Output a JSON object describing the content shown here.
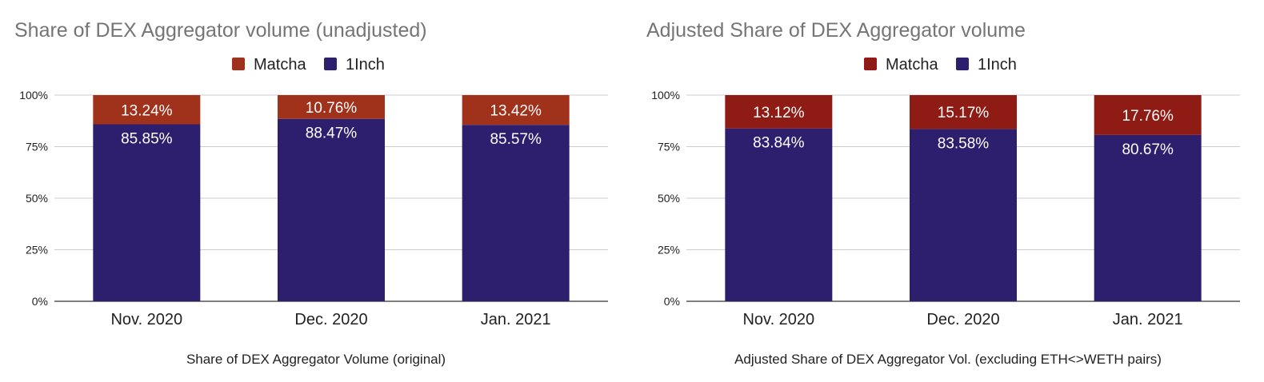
{
  "chart_data": [
    {
      "type": "bar",
      "stacked": true,
      "title": "Share of DEX Aggregator volume (unadjusted)",
      "caption": "Share of DEX Aggregator Volume (original)",
      "categories": [
        "Nov. 2020",
        "Dec. 2020",
        "Jan. 2021"
      ],
      "series": [
        {
          "name": "1Inch",
          "color": "#2e1f6e",
          "values": [
            85.85,
            88.47,
            85.57
          ],
          "labels": [
            "85.85%",
            "88.47%",
            "85.57%"
          ]
        },
        {
          "name": "Matcha",
          "color": "#a0311b",
          "values": [
            13.24,
            10.76,
            13.42
          ],
          "labels": [
            "13.24%",
            "10.76%",
            "13.42%"
          ]
        }
      ],
      "legend": [
        {
          "name": "Matcha",
          "color": "#a0311b"
        },
        {
          "name": "1Inch",
          "color": "#2e1f6e"
        }
      ],
      "legend_position": "top",
      "y_ticks": [
        "0%",
        "25%",
        "50%",
        "75%",
        "100%"
      ],
      "ylim": [
        0,
        100
      ],
      "grid": true
    },
    {
      "type": "bar",
      "stacked": true,
      "title": "Adjusted Share of DEX Aggregator volume",
      "caption": "Adjusted Share of DEX Aggregator Vol. (excluding ETH<>WETH pairs)",
      "categories": [
        "Nov. 2020",
        "Dec. 2020",
        "Jan. 2021"
      ],
      "series": [
        {
          "name": "1Inch",
          "color": "#2e1f6e",
          "values": [
            83.84,
            83.58,
            80.67
          ],
          "labels": [
            "83.84%",
            "83.58%",
            "80.67%"
          ]
        },
        {
          "name": "Matcha",
          "color": "#8e1b14",
          "values": [
            13.12,
            15.17,
            17.76
          ],
          "labels": [
            "13.12%",
            "15.17%",
            "17.76%"
          ]
        }
      ],
      "legend": [
        {
          "name": "Matcha",
          "color": "#8e1b14"
        },
        {
          "name": "1Inch",
          "color": "#2e1f6e"
        }
      ],
      "legend_position": "top",
      "y_ticks": [
        "0%",
        "25%",
        "50%",
        "75%",
        "100%"
      ],
      "ylim": [
        0,
        100
      ],
      "grid": true
    }
  ]
}
